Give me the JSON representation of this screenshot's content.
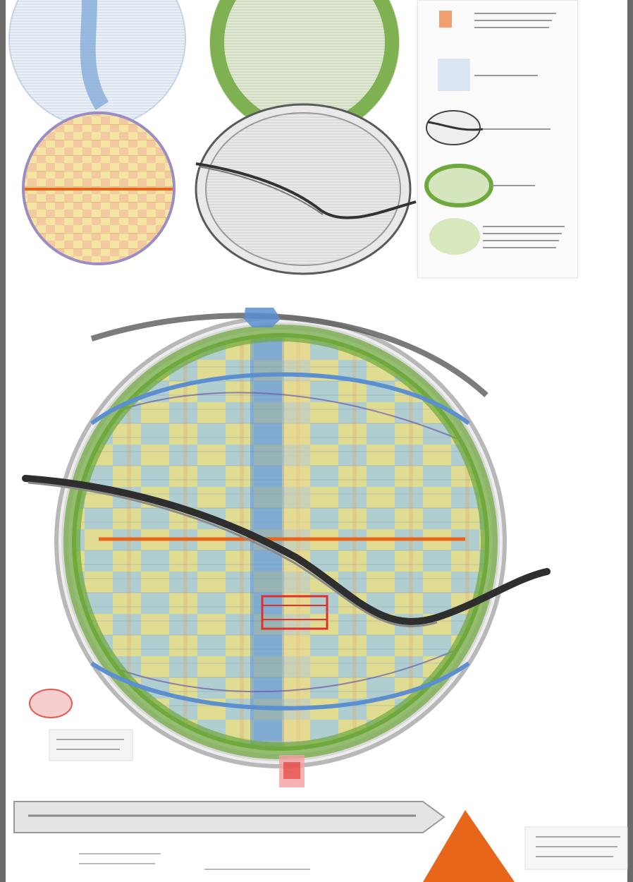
{
  "colors": {
    "blue": "#5b8fd0",
    "light_blue": "#bcd3ea",
    "green": "#6fa83c",
    "light_green": "#cfe3ad",
    "orange": "#e8661a",
    "yellow": "#f4e6a2",
    "purple": "#6c5aa8",
    "dark_gray": "#3a3a3a",
    "light_gray": "#cfcfcf",
    "red": "#e0302a"
  },
  "panels": {
    "blue_grid": {
      "icon": "blue-gridded-circle-icon"
    },
    "green_ring": {
      "icon": "green-ring-circle-icon"
    },
    "checkered": {
      "icon": "orange-yellow-checkered-circle-icon"
    },
    "curve_disc": {
      "icon": "gray-disc-with-s-curve-icon"
    },
    "composite": {
      "icon": "composite-layered-circle-icon"
    }
  },
  "legend": {
    "items": [
      {
        "icon": "orange-swatch-icon",
        "caption": ""
      },
      {
        "icon": "light-blue-swatch-icon",
        "caption": ""
      },
      {
        "icon": "gray-curve-swatch-icon",
        "caption": ""
      },
      {
        "icon": "green-ellipse-swatch-icon",
        "caption": ""
      },
      {
        "icon": "light-green-ellipse-swatch-icon",
        "caption": ""
      }
    ]
  },
  "markers": {
    "top": {
      "icon": "blue-top-marker-icon"
    },
    "bottom": {
      "icon": "red-bottom-marker-icon"
    },
    "left_note": {
      "icon": "red-stamp-icon",
      "text": ""
    }
  },
  "footer": {
    "banner_icon": "gray-banner-bar-icon",
    "triangle_icon": "orange-triangle-icon",
    "caption_left": "",
    "caption_mid": "",
    "caption_right": ""
  }
}
